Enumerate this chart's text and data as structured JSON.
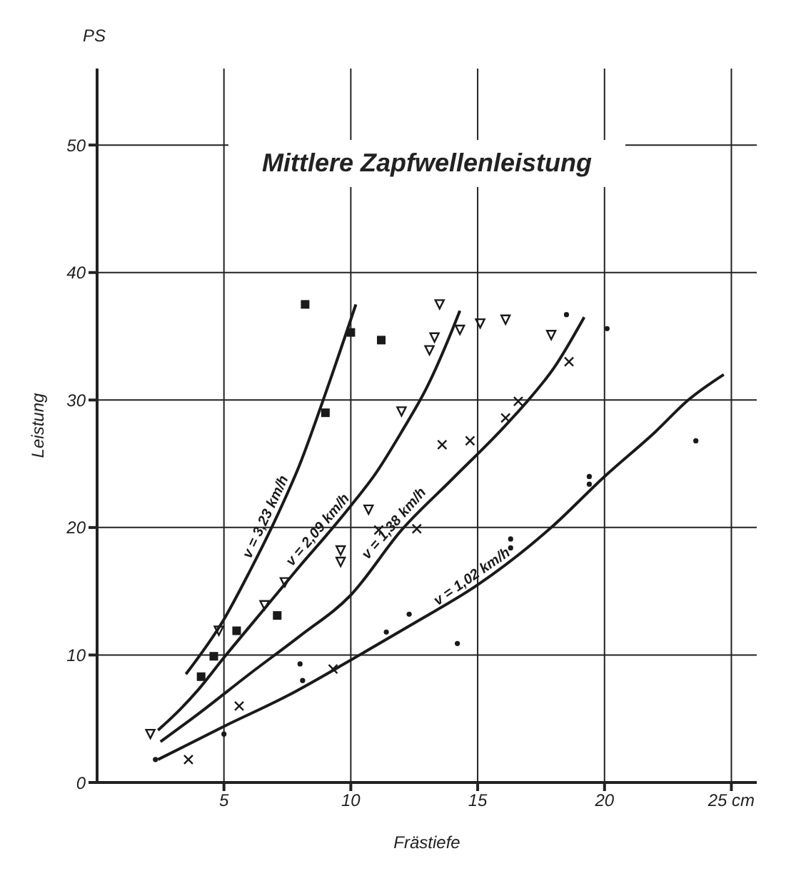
{
  "chart_data": {
    "type": "line",
    "title": "Mittlere Zapfwellenleistung",
    "xlabel": "Frästiefe",
    "ylabel": "Leistung",
    "annotations": [
      "PS"
    ],
    "xlim": [
      0,
      26
    ],
    "ylim": [
      0,
      56
    ],
    "xticks": [
      5,
      10,
      15,
      20,
      {
        "value": 25,
        "label": "25 cm"
      }
    ],
    "yticks": [
      0,
      10,
      20,
      30,
      40,
      50
    ],
    "grid": true,
    "legend": false,
    "series": [
      {
        "name": "v = 3,23 km/h",
        "marker": "none",
        "color": "#1a1a1a",
        "x": [
          3.5,
          5,
          6,
          7,
          8,
          9,
          10.2
        ],
        "values": [
          8.5,
          12.8,
          16.5,
          20.5,
          25,
          30.5,
          37.5
        ]
      },
      {
        "name": "v = 2,09 km/h",
        "marker": "none",
        "color": "#1a1a1a",
        "x": [
          2.4,
          3,
          4,
          5,
          6,
          7,
          8,
          9,
          10,
          11,
          12,
          13,
          14,
          14.3
        ],
        "values": [
          4.1,
          5.2,
          7.3,
          9.8,
          12.2,
          14.6,
          17,
          19.3,
          21.7,
          24.3,
          27.5,
          31,
          35.5,
          37
        ]
      },
      {
        "name": "v = 1,38 km/h",
        "marker": "none",
        "color": "#1a1a1a",
        "x": [
          2.5,
          4,
          6,
          8,
          10,
          12,
          14,
          16,
          17,
          18,
          19.2
        ],
        "values": [
          3.2,
          5.4,
          8.5,
          11.5,
          14.7,
          19.8,
          23.8,
          27.8,
          30,
          32.5,
          36.5
        ]
      },
      {
        "name": "v = 1,02 km/h",
        "marker": "none",
        "color": "#1a1a1a",
        "x": [
          2.4,
          5,
          7.5,
          10,
          12.5,
          15,
          17.9,
          20,
          22,
          23.3,
          24.7
        ],
        "values": [
          1.8,
          4.4,
          6.8,
          9.6,
          12.5,
          15.5,
          20,
          24,
          27.5,
          30,
          32
        ]
      },
      {
        "type": "scatter",
        "marker": "square",
        "color": "#1a1a1a",
        "x": [
          8.2,
          10,
          9,
          7.1,
          5.5,
          4.6,
          4.1,
          11.2
        ],
        "values": [
          37.5,
          35.3,
          29,
          13.1,
          11.9,
          9.9,
          8.3,
          34.7
        ]
      },
      {
        "type": "scatter",
        "marker": "triangle",
        "color": "#1a1a1a",
        "x": [
          2.1,
          4.8,
          6.6,
          7.4,
          9.6,
          9.6,
          10.7,
          12.0,
          13.1,
          13.3,
          13.5,
          14.3,
          15.1,
          16.1,
          17.9
        ],
        "values": [
          3.8,
          11.9,
          13.9,
          15.7,
          18.2,
          17.3,
          21.4,
          29.1,
          33.9,
          34.9,
          37.5,
          35.5,
          36.0,
          36.3,
          35.1
        ]
      },
      {
        "type": "scatter",
        "marker": "cross",
        "color": "#1a1a1a",
        "x": [
          3.6,
          5.6,
          9.3,
          11.1,
          12.6,
          13.6,
          14.7,
          16.1,
          16.6,
          18.6
        ],
        "values": [
          1.8,
          6.0,
          8.9,
          19.8,
          19.9,
          26.5,
          26.8,
          28.6,
          29.9,
          33
        ]
      },
      {
        "type": "scatter",
        "marker": "circle",
        "color": "#1a1a1a",
        "x": [
          2.3,
          5.0,
          8.0,
          8.1,
          11.4,
          12.3,
          14.2,
          16.3,
          16.3,
          19.4,
          19.4,
          23.6,
          20.1,
          18.5
        ],
        "values": [
          1.8,
          3.8,
          9.3,
          8.0,
          11.8,
          13.2,
          10.9,
          19.1,
          18.4,
          24.0,
          23.4,
          26.8,
          35.6,
          36.7
        ]
      }
    ]
  }
}
